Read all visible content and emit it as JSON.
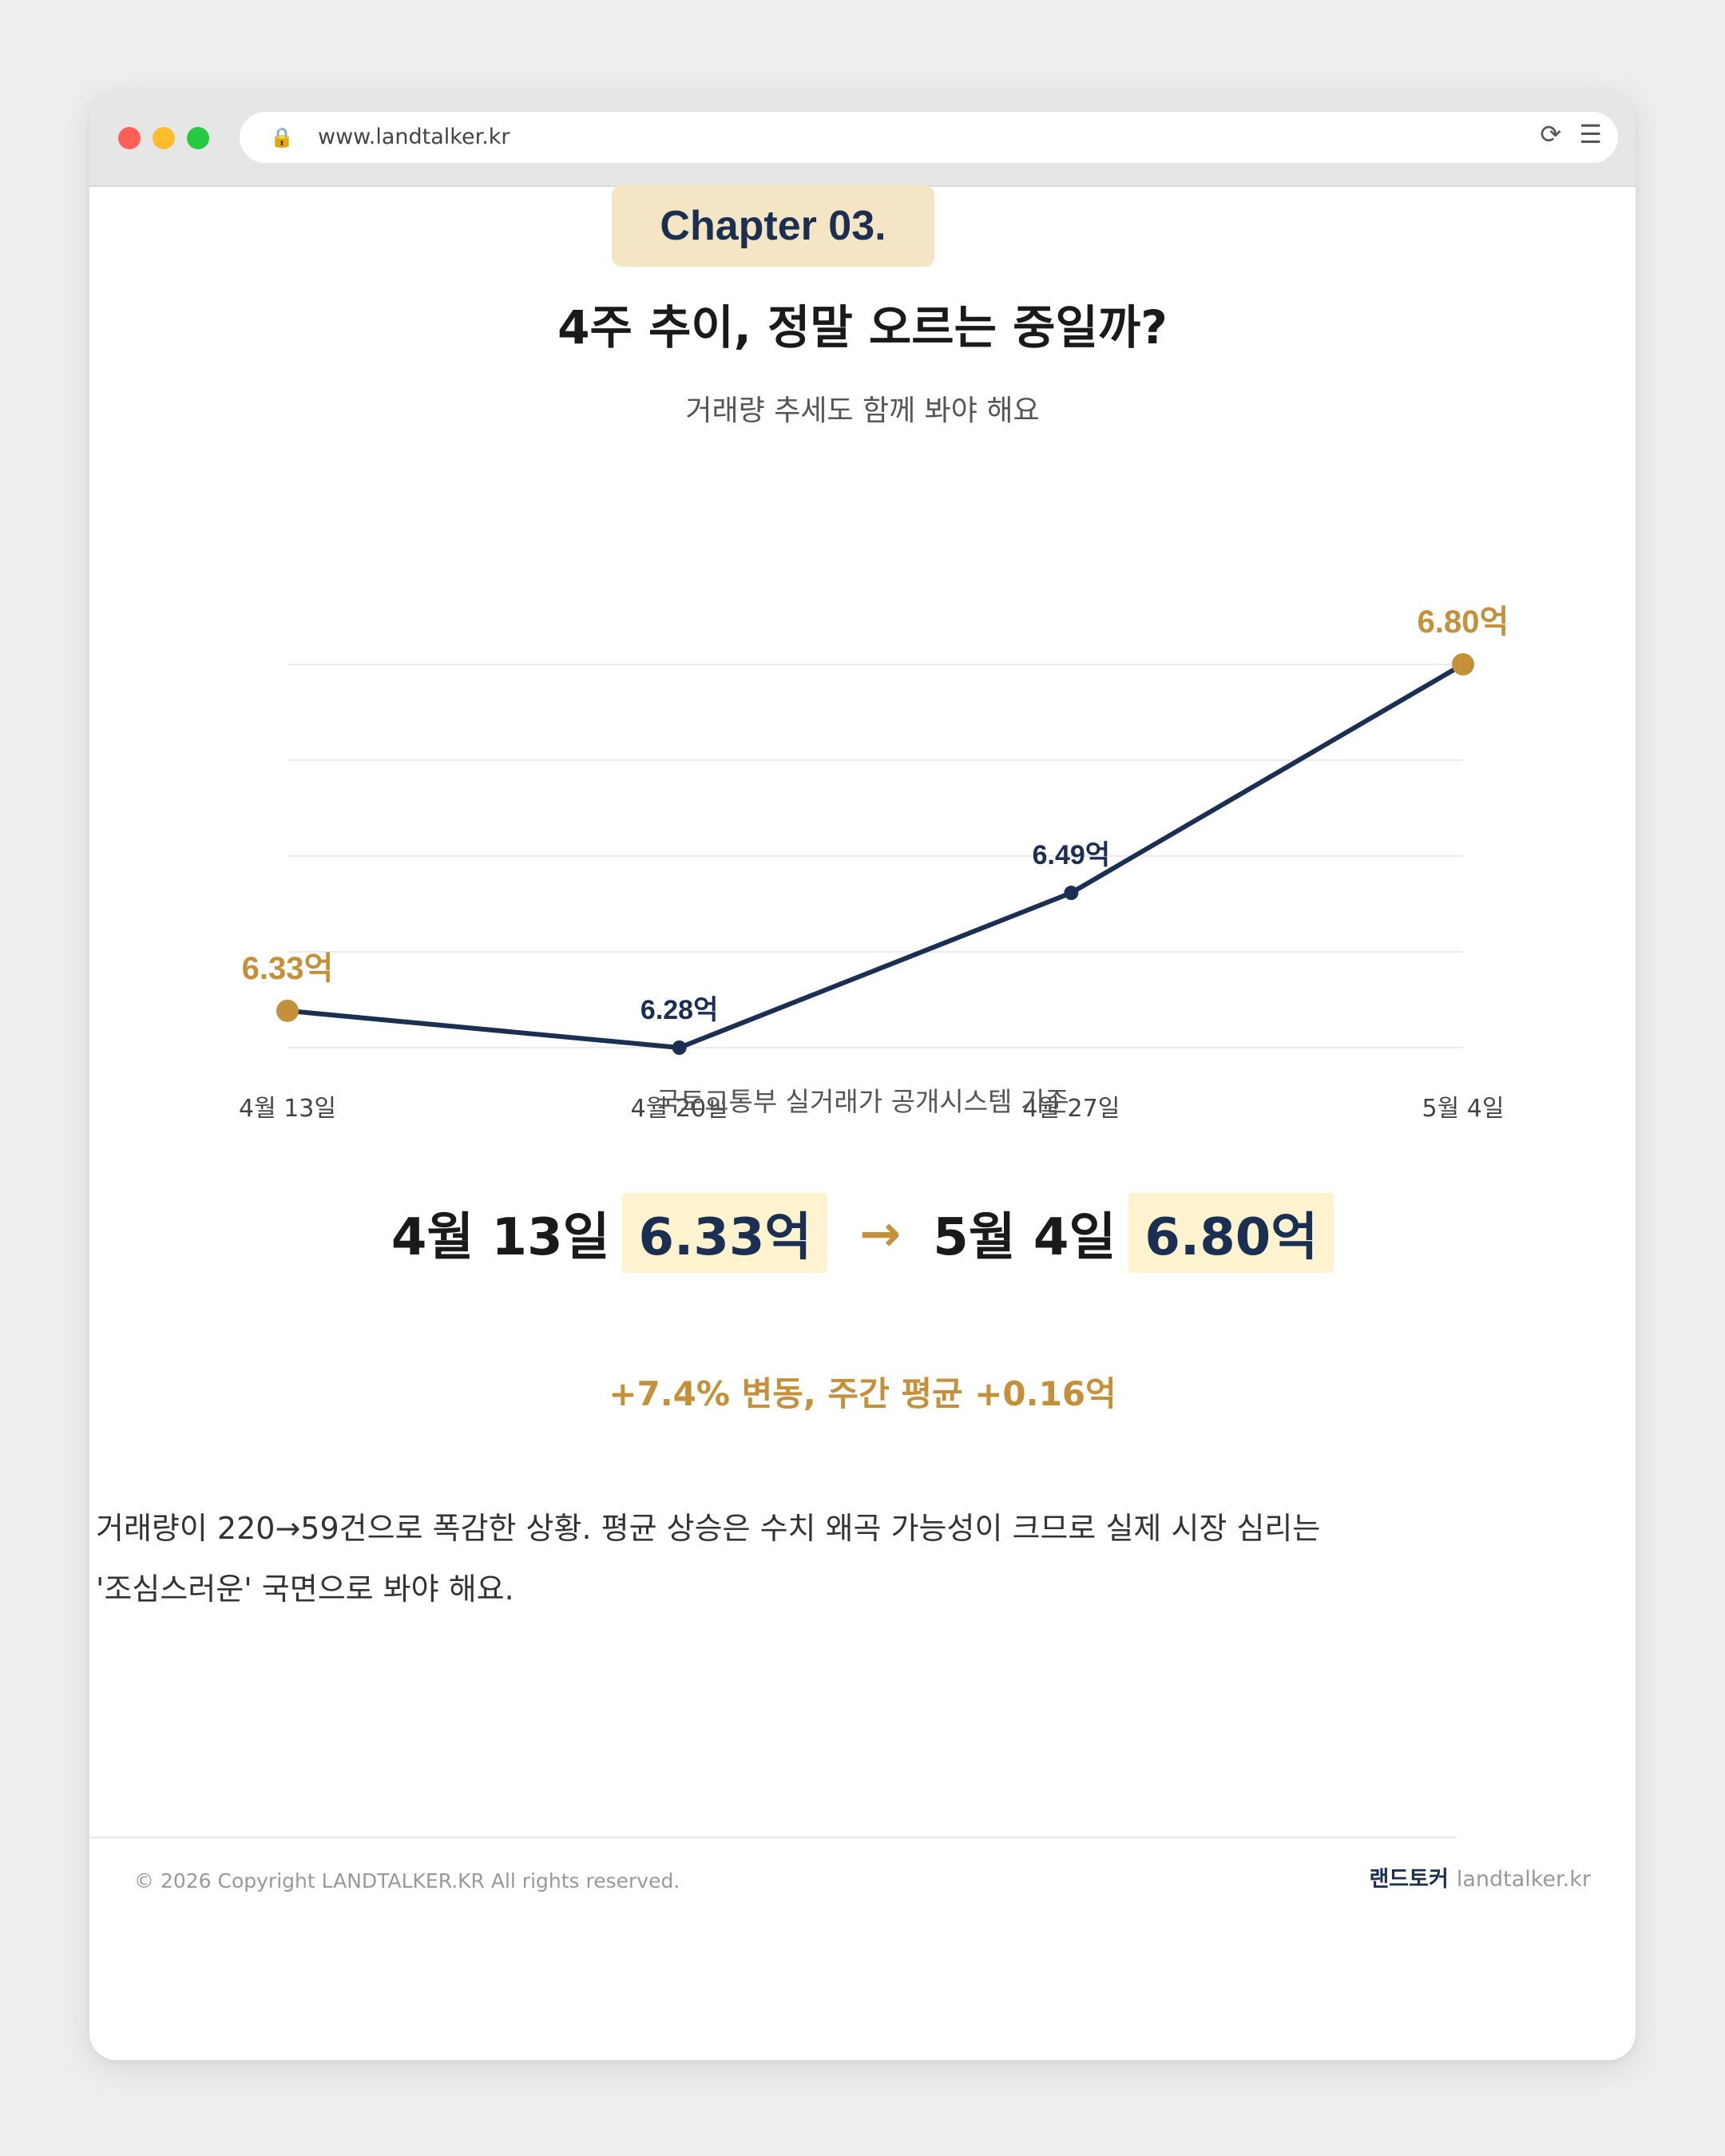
{
  "browser": {
    "url": "www.landtalker.kr",
    "lock_icon": "lock-icon",
    "toolbar_icons": "⟳ ☰"
  },
  "page": {
    "chapter": "Chapter 03.",
    "title": "4주 추이, 정말 오르는 중일까?",
    "subtitle": "거래량 추세도 함께 봐야 해요",
    "source": "국토교통부 실거래가 공개시스템 기준",
    "comparison": {
      "start_date": "4월 13일",
      "start_value": "6.33억",
      "arrow": "→",
      "end_date": "5월 4일",
      "end_value": "6.80억"
    },
    "change": "+7.4% 변동, 주간 평균 +0.16억",
    "body_line1": "거래량이 220→59건으로 폭감한 상황. 평균 상승은 수치 왜곡 가능성이 크므로 실제 시장 심리는",
    "body_line2": "'조심스러운' 국면으로 봐야 해요.",
    "footer": {
      "copyright": "© 2026 Copyright LANDTALKER.KR All rights reserved.",
      "brand_name": "랜드토커",
      "brand_site": "landtalker.kr"
    }
  },
  "chart_data": {
    "type": "line",
    "categories": [
      "4월 13일",
      "4월 20일",
      "4월 27일",
      "5월 4일"
    ],
    "values": [
      6.33,
      6.28,
      6.49,
      6.8
    ],
    "labels": [
      "6.33억",
      "6.28억",
      "6.49억",
      "6.80억"
    ],
    "ylim": [
      6.28,
      6.8
    ],
    "grid": true,
    "line_color": "#1b2f52",
    "highlight_color": "#c4913a"
  }
}
